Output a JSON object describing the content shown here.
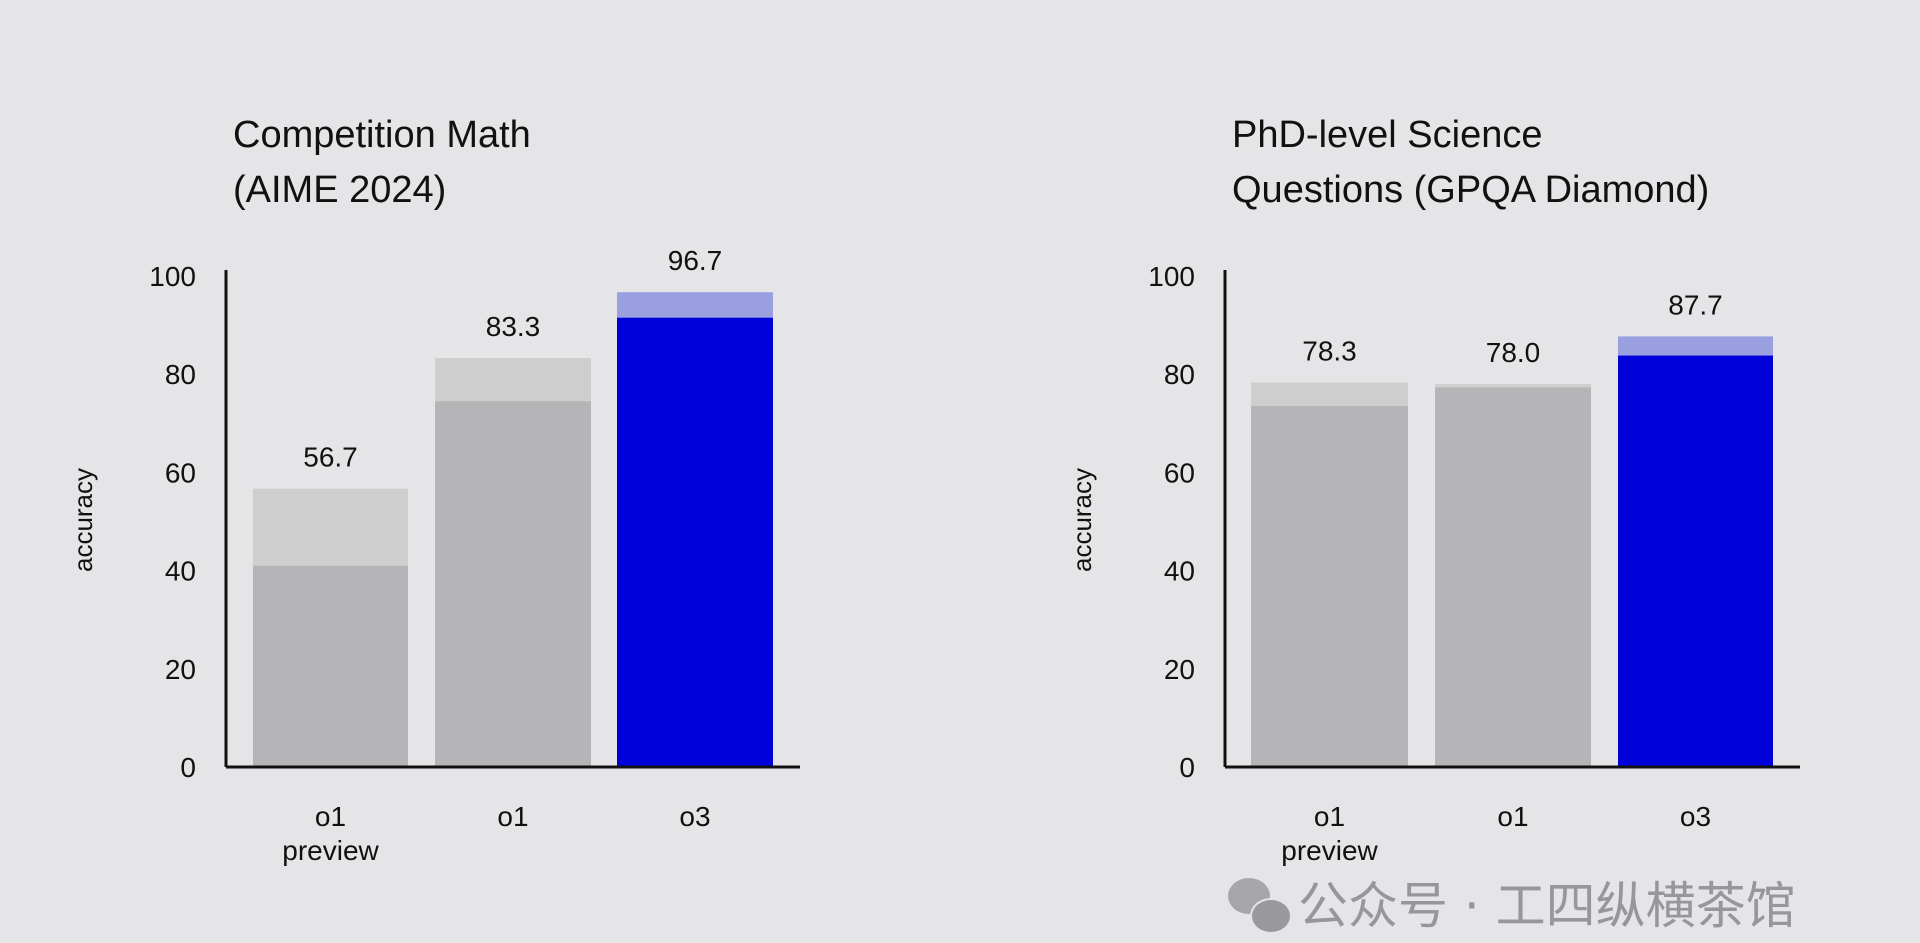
{
  "colors": {
    "background": "#e5e4e7",
    "gray_light": "#cfcecf",
    "gray_dark": "#b5b4b7",
    "blue": "#0000d8",
    "blue_light": "#9a9fe0",
    "axis": "#111111"
  },
  "chart_data": [
    {
      "type": "bar",
      "title": [
        "Competition Math",
        "(AIME 2024)"
      ],
      "ylabel": "accuracy",
      "ylim": [
        0,
        100
      ],
      "yticks": [
        "0",
        "20",
        "40",
        "60",
        "80",
        "100"
      ],
      "categories": [
        [
          "o1",
          "preview"
        ],
        [
          "o1"
        ],
        [
          "o3"
        ]
      ],
      "values": [
        56.7,
        83.3,
        96.7
      ],
      "inner_values": [
        41,
        74.5,
        91.5
      ],
      "data_labels": [
        "56.7",
        "83.3",
        "96.7"
      ],
      "highlight": [
        false,
        false,
        true
      ],
      "grid": false
    },
    {
      "type": "bar",
      "title": [
        "PhD-level Science",
        "Questions (GPQA Diamond)"
      ],
      "ylabel": "accuracy",
      "ylim": [
        0,
        100
      ],
      "yticks": [
        "0",
        "20",
        "40",
        "60",
        "80",
        "100"
      ],
      "categories": [
        [
          "o1",
          "preview"
        ],
        [
          "o1"
        ],
        [
          "o3"
        ]
      ],
      "values": [
        78.3,
        78.0,
        87.7
      ],
      "inner_values": [
        73.5,
        77.3,
        83.8
      ],
      "data_labels": [
        "78.3",
        "78.0",
        "87.7"
      ],
      "highlight": [
        false,
        false,
        true
      ],
      "grid": false
    }
  ],
  "watermark": {
    "text": "公众号 · 工四纵横茶馆",
    "icon": "wechat-icon"
  }
}
